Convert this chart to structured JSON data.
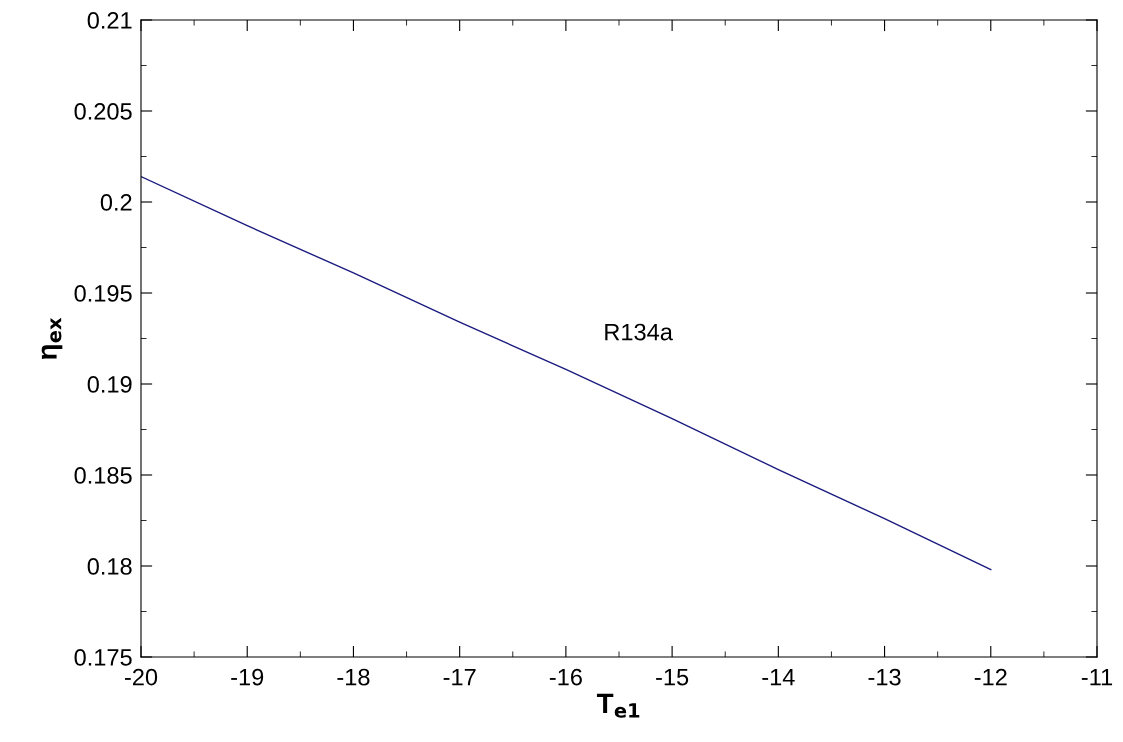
{
  "chart_data": {
    "type": "line",
    "xlabel": "T$_{e1}$",
    "ylabel": "η$_{ex}$",
    "x": [
      -20,
      -19,
      -18,
      -17,
      -16,
      -15,
      -14,
      -13,
      -12
    ],
    "series": [
      {
        "color": "#1a1a80",
        "values": [
          0.2014,
          0.1987,
          0.1961,
          0.1934,
          0.1908,
          0.1881,
          0.1853,
          0.1826,
          0.1798
        ]
      }
    ],
    "annotations": [
      "R134a"
    ],
    "xlim": [
      -20,
      -11
    ],
    "xticks": [
      -20,
      -19,
      -18,
      -17,
      -16,
      -15,
      -14,
      -13,
      -12,
      -11
    ],
    "ylim": [
      0.175,
      0.21
    ],
    "yticks": [
      0.175,
      0.18,
      0.185,
      0.19,
      0.195,
      0.2,
      0.205,
      0.21
    ],
    "grid": false,
    "legend": false,
    "marker": "none",
    "line_style": "solid"
  }
}
